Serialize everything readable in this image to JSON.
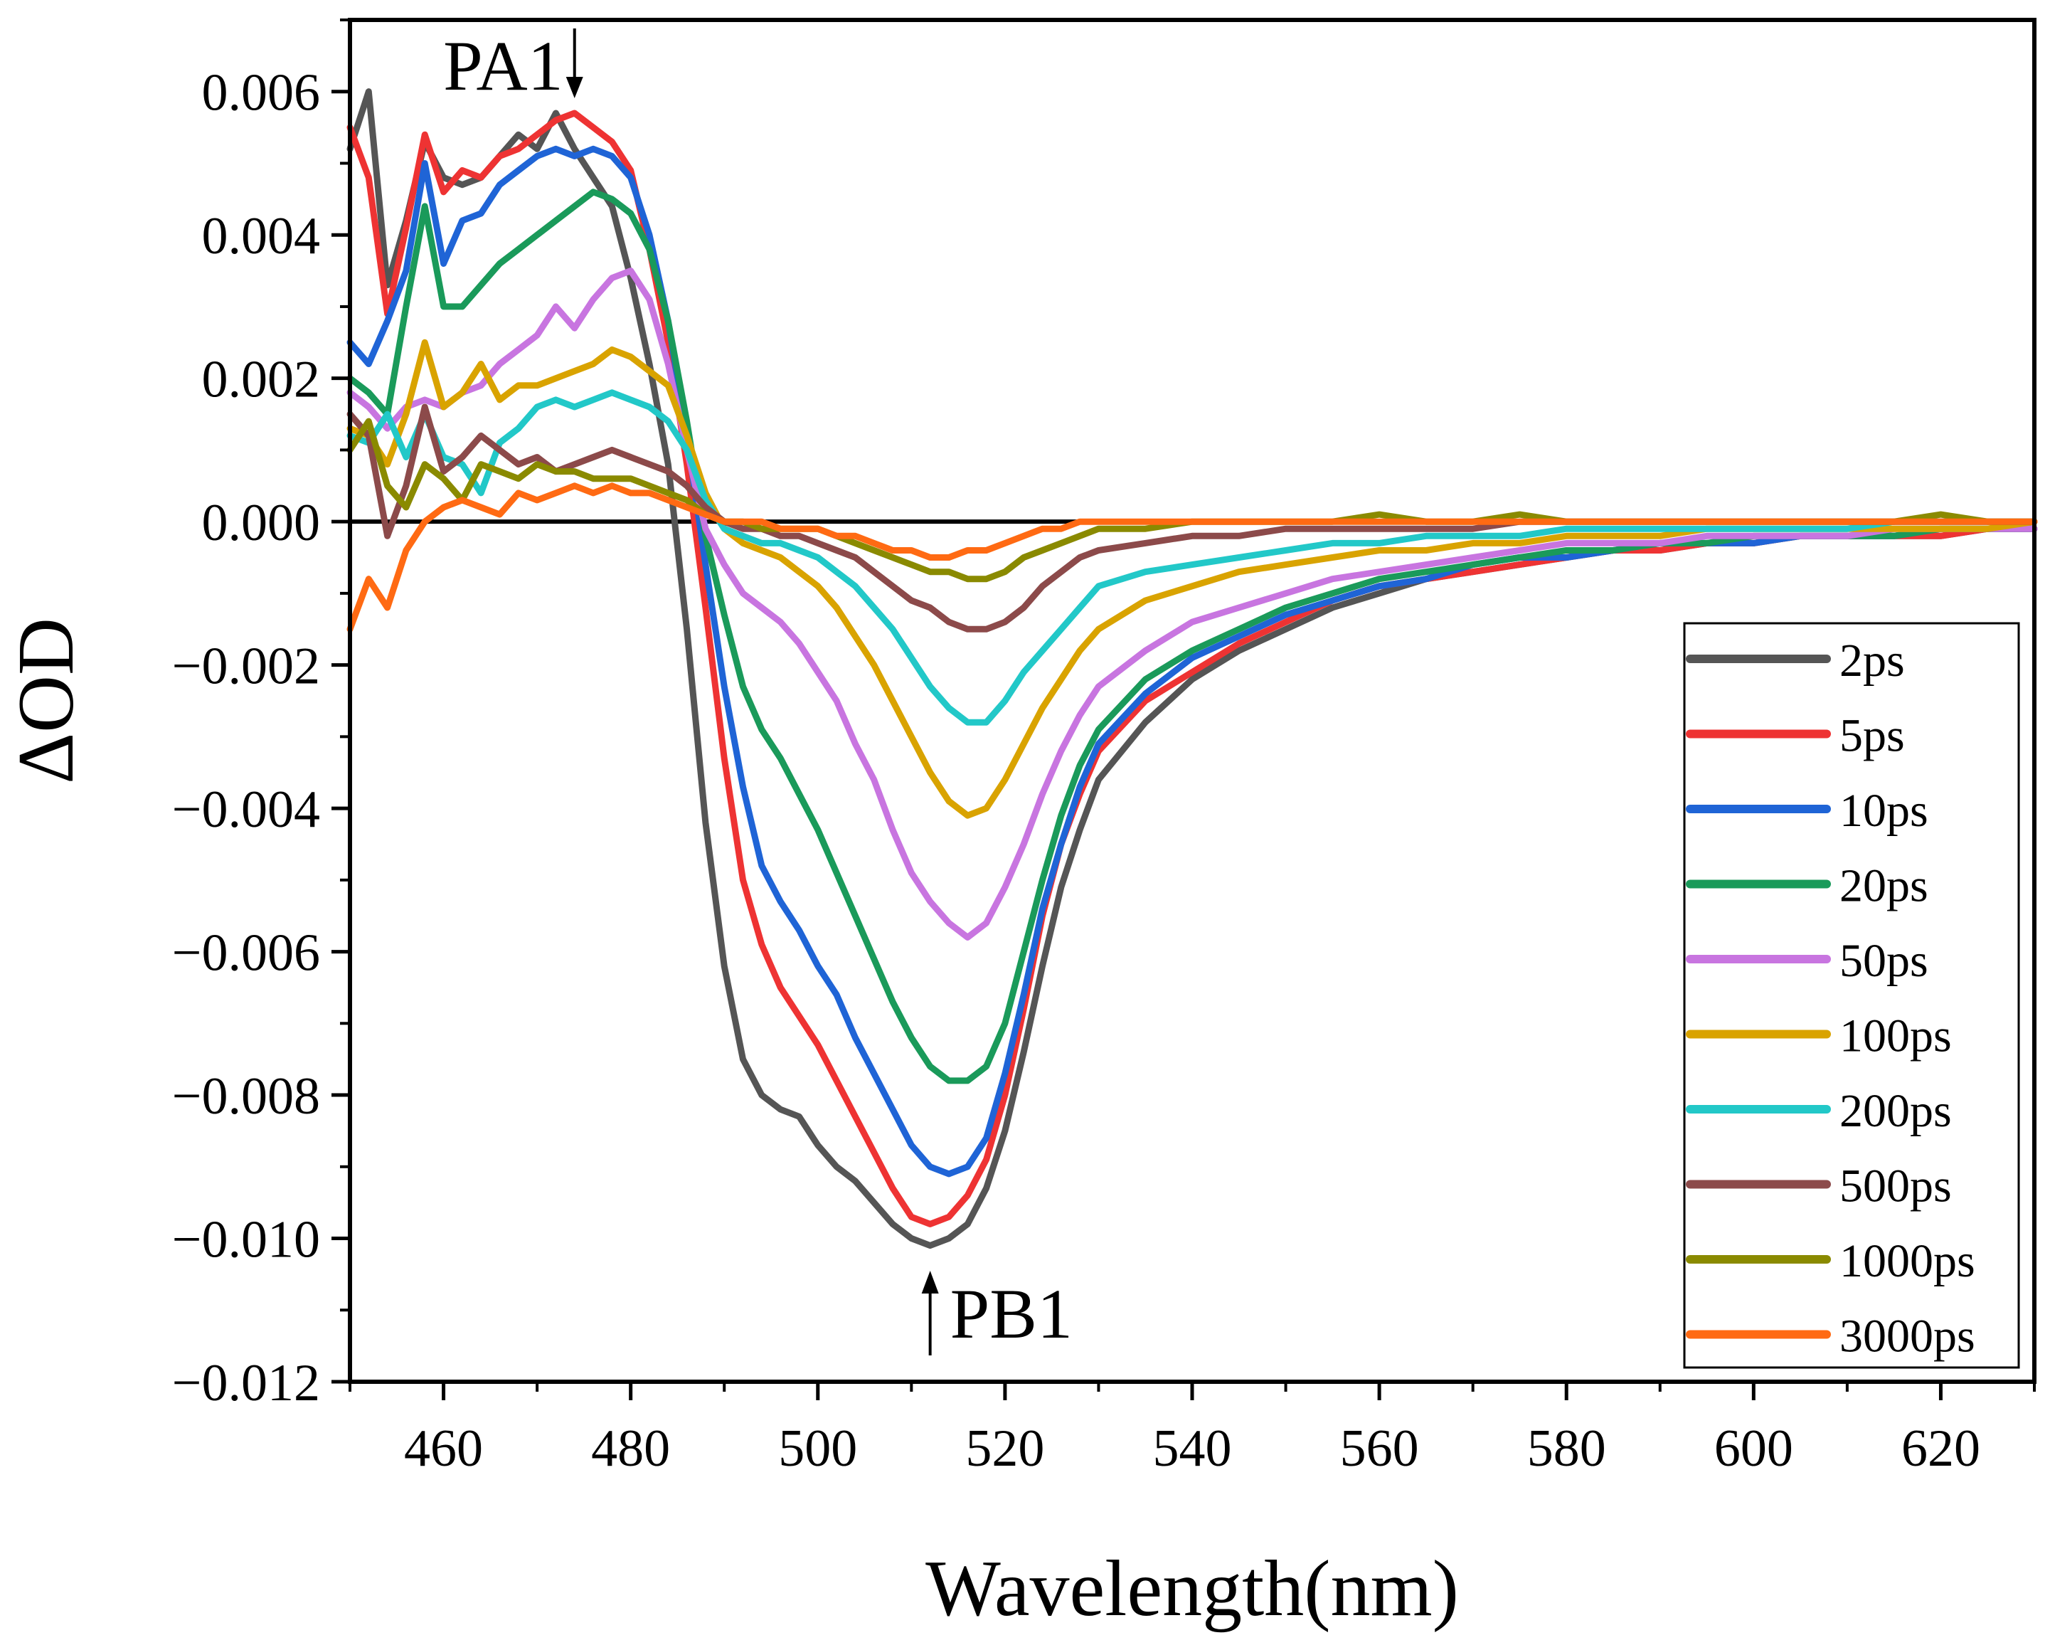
{
  "chart_data": {
    "type": "line",
    "title": "",
    "xlabel": "Wavelength(nm)",
    "ylabel": "ΔOD",
    "xlim": [
      450,
      630
    ],
    "ylim": [
      -0.012,
      0.007
    ],
    "xticks": [
      460,
      480,
      500,
      520,
      540,
      560,
      580,
      600,
      620
    ],
    "xtick_labels": [
      "460",
      "480",
      "500",
      "520",
      "540",
      "560",
      "580",
      "600",
      "620"
    ],
    "yticks": [
      0.006,
      0.004,
      0.002,
      0.0,
      -0.002,
      -0.004,
      -0.006,
      -0.008,
      -0.01,
      -0.012
    ],
    "ytick_labels": [
      "0.006",
      "0.004",
      "0.002",
      "0.000",
      "−0.002",
      "−0.004",
      "−0.006",
      "−0.008",
      "−0.010",
      "−0.012"
    ],
    "grid": false,
    "legend_position": "bottom-right",
    "x": [
      450,
      452,
      454,
      456,
      458,
      460,
      462,
      464,
      466,
      468,
      470,
      472,
      474,
      476,
      478,
      480,
      482,
      484,
      486,
      488,
      490,
      492,
      494,
      496,
      498,
      500,
      502,
      504,
      506,
      508,
      510,
      512,
      514,
      516,
      518,
      520,
      522,
      524,
      526,
      528,
      530,
      535,
      540,
      545,
      550,
      555,
      560,
      565,
      570,
      575,
      580,
      585,
      590,
      595,
      600,
      605,
      610,
      615,
      620,
      625,
      630
    ],
    "series": [
      {
        "name": "2ps",
        "color": "#555555",
        "values": [
          0.0052,
          0.006,
          0.0033,
          0.0042,
          0.0053,
          0.0048,
          0.0047,
          0.0048,
          0.0051,
          0.0054,
          0.0052,
          0.0057,
          0.0052,
          0.0048,
          0.0044,
          0.0034,
          0.0022,
          0.0008,
          -0.0015,
          -0.0042,
          -0.0062,
          -0.0075,
          -0.008,
          -0.0082,
          -0.0083,
          -0.0087,
          -0.009,
          -0.0092,
          -0.0095,
          -0.0098,
          -0.01,
          -0.0101,
          -0.01,
          -0.0098,
          -0.0093,
          -0.0085,
          -0.0074,
          -0.0062,
          -0.0051,
          -0.0043,
          -0.0036,
          -0.0028,
          -0.0022,
          -0.0018,
          -0.0015,
          -0.0012,
          -0.001,
          -0.0008,
          -0.0007,
          -0.0006,
          -0.0005,
          -0.0004,
          -0.0004,
          -0.0003,
          -0.0003,
          -0.0002,
          -0.0002,
          -0.0002,
          -0.0002,
          -0.0001,
          -0.0001
        ]
      },
      {
        "name": "5ps",
        "color": "#ee3333",
        "values": [
          0.0055,
          0.0048,
          0.0029,
          0.0041,
          0.0054,
          0.0046,
          0.0049,
          0.0048,
          0.0051,
          0.0052,
          0.0054,
          0.0056,
          0.0057,
          0.0055,
          0.0053,
          0.0049,
          0.0038,
          0.0025,
          0.0008,
          -0.0012,
          -0.0033,
          -0.005,
          -0.0059,
          -0.0065,
          -0.0069,
          -0.0073,
          -0.0078,
          -0.0083,
          -0.0088,
          -0.0093,
          -0.0097,
          -0.0098,
          -0.0097,
          -0.0094,
          -0.0089,
          -0.008,
          -0.0068,
          -0.0055,
          -0.0045,
          -0.0038,
          -0.0032,
          -0.0025,
          -0.0021,
          -0.0017,
          -0.0014,
          -0.0011,
          -0.0009,
          -0.0008,
          -0.0007,
          -0.0006,
          -0.0005,
          -0.0004,
          -0.0004,
          -0.0003,
          -0.0003,
          -0.0002,
          -0.0002,
          -0.0002,
          -0.0002,
          -0.0001,
          -0.0001
        ]
      },
      {
        "name": "10ps",
        "color": "#1f64d6",
        "values": [
          0.0025,
          0.0022,
          0.0028,
          0.0035,
          0.005,
          0.0036,
          0.0042,
          0.0043,
          0.0047,
          0.0049,
          0.0051,
          0.0052,
          0.0051,
          0.0052,
          0.0051,
          0.0048,
          0.004,
          0.0028,
          0.0012,
          -0.0006,
          -0.0023,
          -0.0037,
          -0.0048,
          -0.0053,
          -0.0057,
          -0.0062,
          -0.0066,
          -0.0072,
          -0.0077,
          -0.0082,
          -0.0087,
          -0.009,
          -0.0091,
          -0.009,
          -0.0086,
          -0.0077,
          -0.0066,
          -0.0054,
          -0.0045,
          -0.0037,
          -0.0031,
          -0.0024,
          -0.0019,
          -0.0016,
          -0.0013,
          -0.0011,
          -0.0009,
          -0.0008,
          -0.0006,
          -0.0005,
          -0.0005,
          -0.0004,
          -0.0003,
          -0.0003,
          -0.0003,
          -0.0002,
          -0.0002,
          -0.0002,
          -0.0001,
          -0.0001,
          -0.0001
        ]
      },
      {
        "name": "20ps",
        "color": "#1a9a5a",
        "values": [
          0.002,
          0.0018,
          0.0015,
          0.003,
          0.0044,
          0.003,
          0.003,
          0.0033,
          0.0036,
          0.0038,
          0.004,
          0.0042,
          0.0044,
          0.0046,
          0.0045,
          0.0043,
          0.0038,
          0.0028,
          0.0014,
          -0.0002,
          -0.0013,
          -0.0023,
          -0.0029,
          -0.0033,
          -0.0038,
          -0.0043,
          -0.0049,
          -0.0055,
          -0.0061,
          -0.0067,
          -0.0072,
          -0.0076,
          -0.0078,
          -0.0078,
          -0.0076,
          -0.007,
          -0.006,
          -0.005,
          -0.0041,
          -0.0034,
          -0.0029,
          -0.0022,
          -0.0018,
          -0.0015,
          -0.0012,
          -0.001,
          -0.0008,
          -0.0007,
          -0.0006,
          -0.0005,
          -0.0004,
          -0.0004,
          -0.0003,
          -0.0003,
          -0.0002,
          -0.0002,
          -0.0002,
          -0.0002,
          -0.0001,
          -0.0001,
          -0.0001
        ]
      },
      {
        "name": "50ps",
        "color": "#c875e0",
        "values": [
          0.0018,
          0.0016,
          0.0013,
          0.0016,
          0.0017,
          0.0016,
          0.0018,
          0.0019,
          0.0022,
          0.0024,
          0.0026,
          0.003,
          0.0027,
          0.0031,
          0.0034,
          0.0035,
          0.0031,
          0.0022,
          0.001,
          -0.0001,
          -0.0006,
          -0.001,
          -0.0012,
          -0.0014,
          -0.0017,
          -0.0021,
          -0.0025,
          -0.0031,
          -0.0036,
          -0.0043,
          -0.0049,
          -0.0053,
          -0.0056,
          -0.0058,
          -0.0056,
          -0.0051,
          -0.0045,
          -0.0038,
          -0.0032,
          -0.0027,
          -0.0023,
          -0.0018,
          -0.0014,
          -0.0012,
          -0.001,
          -0.0008,
          -0.0007,
          -0.0006,
          -0.0005,
          -0.0004,
          -0.0003,
          -0.0003,
          -0.0003,
          -0.0002,
          -0.0002,
          -0.0002,
          -0.0002,
          -0.0001,
          -0.0001,
          -0.0001,
          -0.0001
        ]
      },
      {
        "name": "100ps",
        "color": "#d9a300",
        "values": [
          0.0013,
          0.0012,
          0.0008,
          0.0015,
          0.0025,
          0.0016,
          0.0018,
          0.0022,
          0.0017,
          0.0019,
          0.0019,
          0.002,
          0.0021,
          0.0022,
          0.0024,
          0.0023,
          0.0021,
          0.0019,
          0.0012,
          0.0004,
          -0.0001,
          -0.0003,
          -0.0004,
          -0.0005,
          -0.0007,
          -0.0009,
          -0.0012,
          -0.0016,
          -0.002,
          -0.0025,
          -0.003,
          -0.0035,
          -0.0039,
          -0.0041,
          -0.004,
          -0.0036,
          -0.0031,
          -0.0026,
          -0.0022,
          -0.0018,
          -0.0015,
          -0.0011,
          -0.0009,
          -0.0007,
          -0.0006,
          -0.0005,
          -0.0004,
          -0.0004,
          -0.0003,
          -0.0003,
          -0.0002,
          -0.0002,
          -0.0002,
          -0.0001,
          -0.0001,
          -0.0001,
          -0.0001,
          -0.0001,
          -0.0001,
          -0.0001,
          0.0
        ]
      },
      {
        "name": "200ps",
        "color": "#22c8c8",
        "values": [
          0.0012,
          0.0011,
          0.0015,
          0.0009,
          0.0015,
          0.0009,
          0.0008,
          0.0004,
          0.0011,
          0.0013,
          0.0016,
          0.0017,
          0.0016,
          0.0017,
          0.0018,
          0.0017,
          0.0016,
          0.0014,
          0.001,
          0.0003,
          -0.0001,
          -0.0002,
          -0.0003,
          -0.0003,
          -0.0004,
          -0.0005,
          -0.0007,
          -0.0009,
          -0.0012,
          -0.0015,
          -0.0019,
          -0.0023,
          -0.0026,
          -0.0028,
          -0.0028,
          -0.0025,
          -0.0021,
          -0.0018,
          -0.0015,
          -0.0012,
          -0.0009,
          -0.0007,
          -0.0006,
          -0.0005,
          -0.0004,
          -0.0003,
          -0.0003,
          -0.0002,
          -0.0002,
          -0.0002,
          -0.0001,
          -0.0001,
          -0.0001,
          -0.0001,
          -0.0001,
          -0.0001,
          -0.0001,
          0.0,
          0.0,
          0.0,
          0.0
        ]
      },
      {
        "name": "500ps",
        "color": "#8c4a4a",
        "values": [
          0.0015,
          0.0012,
          -0.0002,
          0.0005,
          0.0016,
          0.0007,
          0.0009,
          0.0012,
          0.001,
          0.0008,
          0.0009,
          0.0007,
          0.0008,
          0.0009,
          0.001,
          0.0009,
          0.0008,
          0.0007,
          0.0005,
          0.0002,
          0.0,
          -0.0001,
          -0.0001,
          -0.0002,
          -0.0002,
          -0.0003,
          -0.0004,
          -0.0005,
          -0.0007,
          -0.0009,
          -0.0011,
          -0.0012,
          -0.0014,
          -0.0015,
          -0.0015,
          -0.0014,
          -0.0012,
          -0.0009,
          -0.0007,
          -0.0005,
          -0.0004,
          -0.0003,
          -0.0002,
          -0.0002,
          -0.0001,
          -0.0001,
          -0.0001,
          -0.0001,
          -0.0001,
          0.0,
          0.0,
          0.0,
          0.0,
          0.0,
          0.0,
          0.0,
          0.0,
          0.0,
          0.0,
          0.0,
          0.0
        ]
      },
      {
        "name": "1000ps",
        "color": "#8a8a00",
        "values": [
          0.001,
          0.0014,
          0.0005,
          0.0002,
          0.0008,
          0.0006,
          0.0003,
          0.0008,
          0.0007,
          0.0006,
          0.0008,
          0.0007,
          0.0007,
          0.0006,
          0.0006,
          0.0006,
          0.0005,
          0.0004,
          0.0003,
          0.0001,
          0.0,
          0.0,
          -0.0001,
          -0.0001,
          -0.0001,
          -0.0001,
          -0.0002,
          -0.0003,
          -0.0004,
          -0.0005,
          -0.0006,
          -0.0007,
          -0.0007,
          -0.0008,
          -0.0008,
          -0.0007,
          -0.0005,
          -0.0004,
          -0.0003,
          -0.0002,
          -0.0001,
          -0.0001,
          0.0,
          0.0,
          0.0,
          0.0,
          0.0001,
          0.0,
          0.0,
          0.0001,
          0.0,
          0.0,
          0.0,
          0.0,
          0.0,
          0.0,
          0.0,
          0.0,
          0.0001,
          0.0,
          0.0
        ]
      },
      {
        "name": "3000ps",
        "color": "#ff6a13",
        "values": [
          -0.0015,
          -0.0008,
          -0.0012,
          -0.0004,
          0.0,
          0.0002,
          0.0003,
          0.0002,
          0.0001,
          0.0004,
          0.0003,
          0.0004,
          0.0005,
          0.0004,
          0.0005,
          0.0004,
          0.0004,
          0.0003,
          0.0002,
          0.0001,
          0.0,
          0.0,
          0.0,
          -0.0001,
          -0.0001,
          -0.0001,
          -0.0002,
          -0.0002,
          -0.0003,
          -0.0004,
          -0.0004,
          -0.0005,
          -0.0005,
          -0.0004,
          -0.0004,
          -0.0003,
          -0.0002,
          -0.0001,
          -0.0001,
          0.0,
          0.0,
          0.0,
          0.0,
          0.0,
          0.0,
          0.0,
          0.0,
          0.0,
          0.0,
          0.0,
          0.0,
          0.0,
          0.0,
          0.0,
          0.0,
          0.0,
          0.0,
          0.0,
          0.0,
          0.0,
          0.0
        ]
      }
    ],
    "annotations": [
      {
        "text": "PA1",
        "x": 474,
        "y": 0.0057,
        "arrow": "down"
      },
      {
        "text": "PB1",
        "x": 512,
        "y": -0.0101,
        "arrow": "up"
      }
    ]
  }
}
